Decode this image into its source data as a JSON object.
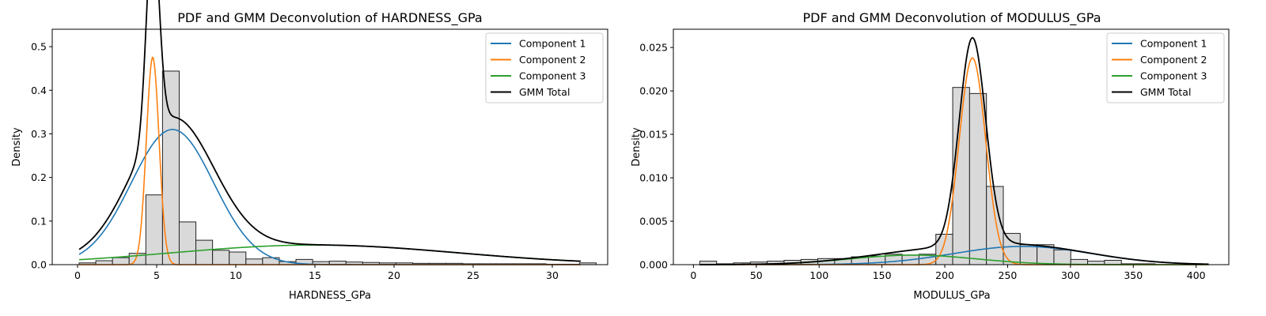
{
  "chart_data": [
    {
      "type": "histogram+line",
      "title": "PDF and GMM Deconvolution of HARDNESS_GPa",
      "xlabel": "HARDNESS_GPa",
      "ylabel": "Density",
      "xlim": [
        -1.6,
        33.5
      ],
      "ylim": [
        0,
        0.54
      ],
      "xticks": [
        0,
        5,
        10,
        15,
        20,
        25,
        30
      ],
      "yticks": [
        0.0,
        0.1,
        0.2,
        0.3,
        0.4,
        0.5
      ],
      "xtick_labels": [
        "0",
        "5",
        "10",
        "15",
        "20",
        "25",
        "30"
      ],
      "ytick_labels": [
        "0.0",
        "0.1",
        "0.2",
        "0.3",
        "0.4",
        "0.5"
      ],
      "grid": false,
      "legend_position": "top-right",
      "histogram": {
        "bin_start": 0.1,
        "bin_width": 1.054,
        "densities": [
          0.004,
          0.009,
          0.016,
          0.026,
          0.16,
          0.444,
          0.098,
          0.056,
          0.033,
          0.029,
          0.013,
          0.016,
          0.007,
          0.012,
          0.007,
          0.008,
          0.006,
          0.005,
          0.004,
          0.004,
          0.003,
          0.003,
          0.003,
          0.002,
          0.002,
          0.002,
          0.002,
          0.002,
          0.001,
          0.001,
          0.004
        ]
      },
      "curve_x_range": [
        0.1,
        31.8
      ],
      "components": [
        {
          "name": "Component 1",
          "color": "#1f77b4",
          "mean": 6.0,
          "sd": 2.6,
          "weight": 0.31
        },
        {
          "name": "Component 2",
          "color": "#ff7f0e",
          "mean": 4.75,
          "sd": 0.4,
          "weight": 0.476
        },
        {
          "name": "Component 3",
          "color": "#2ca02c",
          "mean": 15.0,
          "sd": 9.0,
          "weight": 0.045
        }
      ],
      "total": {
        "name": "GMM Total",
        "color": "#000000"
      }
    },
    {
      "type": "histogram+line",
      "title": "PDF and GMM Deconvolution of MODULUS_GPa",
      "xlabel": "MODULUS_GPa",
      "ylabel": "Density",
      "xlim": [
        -16,
        426
      ],
      "ylim": [
        0,
        0.0271
      ],
      "xticks": [
        0,
        50,
        100,
        150,
        200,
        250,
        300,
        350,
        400
      ],
      "yticks": [
        0.0,
        0.005,
        0.01,
        0.015,
        0.02,
        0.025
      ],
      "xtick_labels": [
        "0",
        "50",
        "100",
        "150",
        "200",
        "250",
        "300",
        "350",
        "400"
      ],
      "ytick_labels": [
        "0.000",
        "0.005",
        "0.010",
        "0.015",
        "0.020",
        "0.025"
      ],
      "grid": false,
      "legend_position": "top-right",
      "histogram": {
        "bin_start": 5,
        "bin_width": 13.42,
        "densities": [
          0.0004,
          0.0001,
          0.0002,
          0.0003,
          0.0004,
          0.0005,
          0.0006,
          0.0007,
          0.0007,
          0.0009,
          0.001,
          0.0012,
          0.0011,
          0.0012,
          0.0035,
          0.0204,
          0.0197,
          0.009,
          0.0036,
          0.0023,
          0.0023,
          0.0017,
          0.0006,
          0.0004,
          0.0005,
          0.0001,
          0.0001,
          0.0,
          0.0,
          0.0
        ]
      },
      "curve_x_range": [
        5,
        410
      ],
      "components": [
        {
          "name": "Component 1",
          "color": "#1f77b4",
          "mean": 262,
          "sd": 55,
          "weight": 0.0021
        },
        {
          "name": "Component 2",
          "color": "#ff7f0e",
          "mean": 222,
          "sd": 10.5,
          "weight": 0.0238
        },
        {
          "name": "Component 3",
          "color": "#2ca02c",
          "mean": 175,
          "sd": 50,
          "weight": 0.0011
        }
      ],
      "total": {
        "name": "GMM Total",
        "color": "#000000"
      }
    }
  ]
}
